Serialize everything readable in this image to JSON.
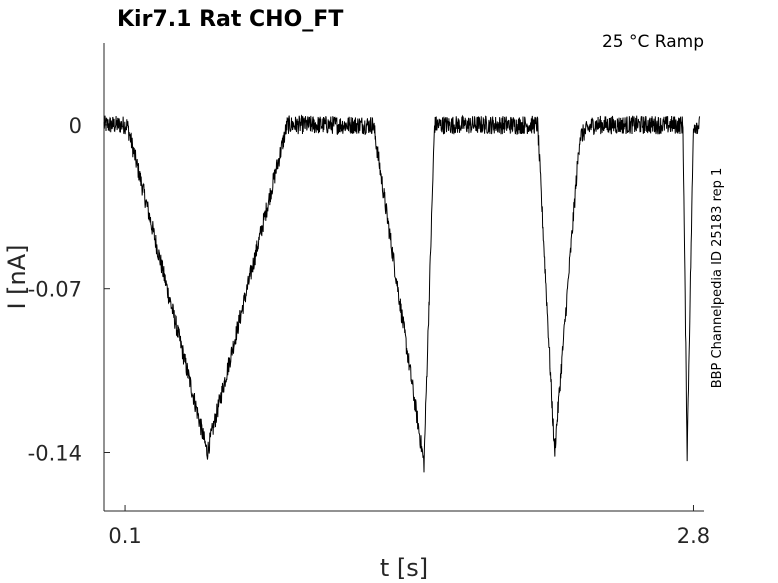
{
  "chart_data": {
    "type": "line",
    "title": "Kir7.1  Rat  CHO_FT",
    "subtitle": "25 °C  Ramp",
    "side_label": "BBP Channelpedia ID 25183 rep 1",
    "xlabel": "t [s]",
    "ylabel": "I [nA]",
    "xlim": [
      0.0,
      2.85
    ],
    "ylim": [
      -0.165,
      0.035
    ],
    "x_ticks": [
      0.1,
      2.8
    ],
    "x_tick_labels": [
      "0.1",
      "2.8"
    ],
    "y_ticks": [
      0,
      -0.07,
      -0.14
    ],
    "y_tick_labels": [
      "0",
      "-0.07",
      "-0.14"
    ],
    "grid": false,
    "series": [
      {
        "color": "#000000",
        "x": [
          0.0,
          0.11,
          0.49,
          0.87,
          1.28,
          1.52,
          1.57,
          2.06,
          2.14,
          2.26,
          2.32,
          2.75,
          2.77,
          2.8,
          2.83
        ],
        "y": [
          0.0,
          0.0,
          -0.14,
          0.0,
          0.0,
          -0.145,
          0.0,
          0.0,
          -0.14,
          -0.005,
          0.0,
          0.0,
          -0.14,
          0.0,
          0.0
        ],
        "noise_amplitude": 0.004
      }
    ]
  }
}
